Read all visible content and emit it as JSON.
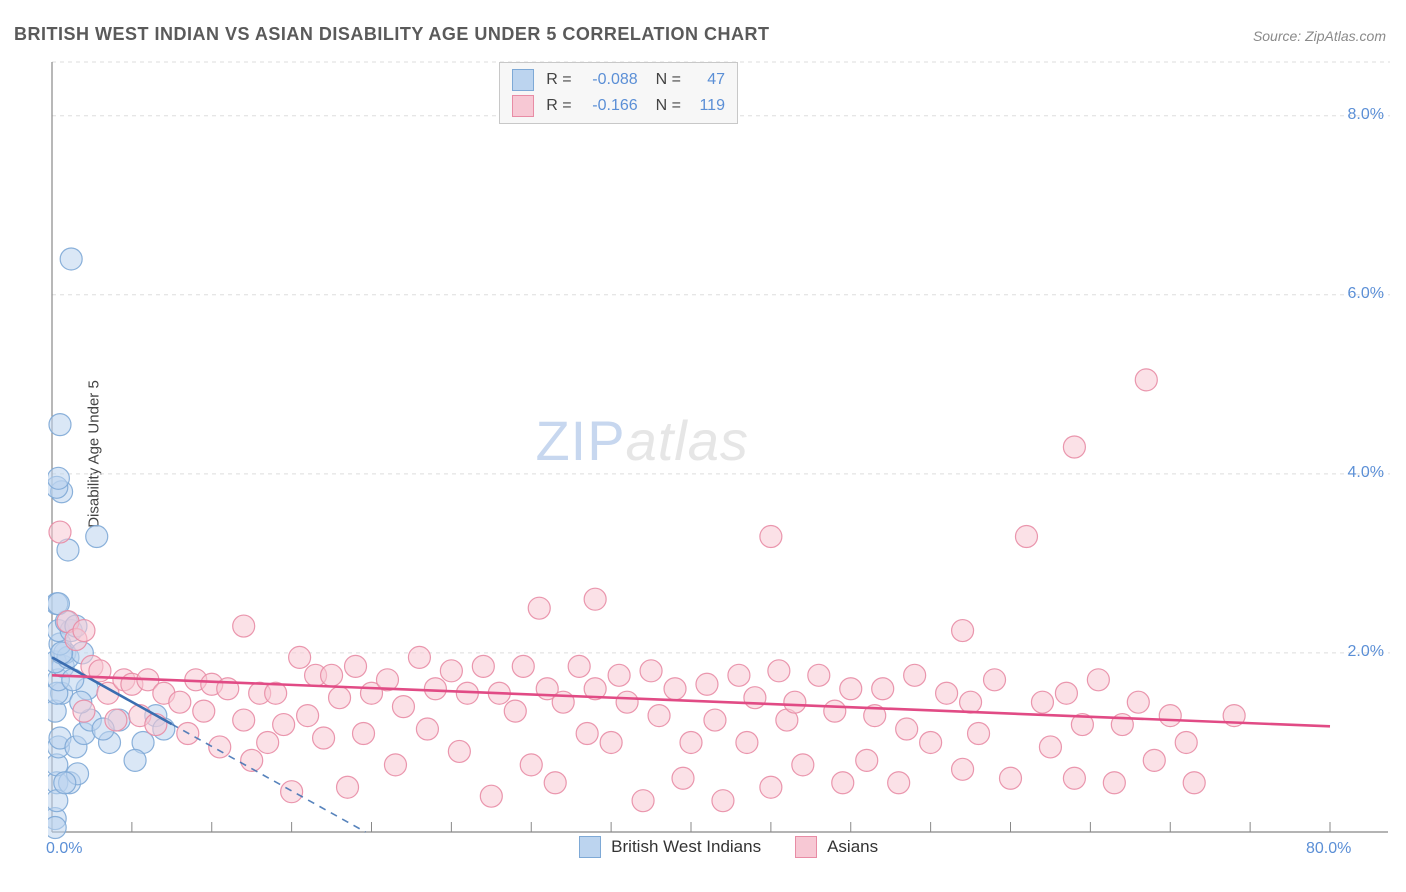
{
  "title": "BRITISH WEST INDIAN VS ASIAN DISABILITY AGE UNDER 5 CORRELATION CHART",
  "source": "Source: ZipAtlas.com",
  "y_axis_label": "Disability Age Under 5",
  "watermark": {
    "left": "ZIP",
    "right": "atlas"
  },
  "chart": {
    "type": "scatter",
    "background_color": "#ffffff",
    "grid_color": "#dedede",
    "axis_color": "#888888",
    "marker_radius": 11,
    "marker_opacity": 0.55,
    "xlim": [
      0,
      80
    ],
    "ylim": [
      0,
      8.6
    ],
    "x_ticks": [
      0,
      5,
      10,
      15,
      20,
      25,
      30,
      35,
      40,
      45,
      50,
      55,
      60,
      65,
      70,
      75,
      80
    ],
    "x_tick_labels": {
      "0": "0.0%",
      "80": "80.0%"
    },
    "y_ticks": [
      2,
      4,
      6,
      8
    ],
    "y_tick_labels": {
      "2": "2.0%",
      "4": "4.0%",
      "6": "6.0%",
      "8": "8.0%"
    },
    "series": [
      {
        "name": "British West Indians",
        "color_fill": "#bcd4ef",
        "color_stroke": "#7ea9d6",
        "R": "-0.088",
        "N": "47",
        "trend": {
          "y_at_xmin": 1.95,
          "y_at_xmax": -6.0,
          "dash_after_x": 7.5,
          "color": "#3a6db0"
        },
        "points": [
          [
            0.2,
            0.15
          ],
          [
            0.3,
            0.55
          ],
          [
            0.3,
            0.75
          ],
          [
            0.4,
            0.95
          ],
          [
            0.5,
            1.05
          ],
          [
            0.2,
            1.35
          ],
          [
            0.6,
            1.55
          ],
          [
            0.3,
            1.55
          ],
          [
            0.4,
            1.7
          ],
          [
            0.7,
            1.85
          ],
          [
            0.2,
            1.9
          ],
          [
            0.8,
            2.0
          ],
          [
            1.0,
            1.95
          ],
          [
            0.5,
            2.1
          ],
          [
            0.4,
            2.25
          ],
          [
            1.2,
            2.25
          ],
          [
            0.3,
            0.35
          ],
          [
            1.1,
            0.55
          ],
          [
            1.6,
            0.65
          ],
          [
            1.5,
            0.95
          ],
          [
            2.0,
            1.1
          ],
          [
            2.2,
            1.6
          ],
          [
            2.4,
            1.25
          ],
          [
            1.8,
            1.45
          ],
          [
            0.9,
            2.35
          ],
          [
            1.5,
            2.3
          ],
          [
            0.3,
            2.55
          ],
          [
            0.4,
            2.55
          ],
          [
            1.0,
            3.15
          ],
          [
            2.8,
            3.3
          ],
          [
            0.6,
            3.8
          ],
          [
            0.3,
            3.85
          ],
          [
            0.4,
            3.95
          ],
          [
            0.5,
            4.55
          ],
          [
            1.2,
            6.4
          ],
          [
            3.6,
            1.0
          ],
          [
            4.2,
            1.25
          ],
          [
            5.7,
            1.0
          ],
          [
            6.5,
            1.3
          ],
          [
            7.0,
            1.15
          ],
          [
            0.2,
            0.05
          ],
          [
            0.8,
            0.55
          ],
          [
            1.3,
            1.7
          ],
          [
            1.9,
            2.0
          ],
          [
            0.6,
            2.0
          ],
          [
            3.2,
            1.15
          ],
          [
            5.2,
            0.8
          ]
        ]
      },
      {
        "name": "Asians",
        "color_fill": "#f7c8d4",
        "color_stroke": "#e88ca5",
        "R": "-0.166",
        "N": "119",
        "trend": {
          "y_at_xmin": 1.75,
          "y_at_xmax": 1.18,
          "dash_after_x": 999,
          "color": "#e14b85"
        },
        "points": [
          [
            0.5,
            3.35
          ],
          [
            1.0,
            2.35
          ],
          [
            1.5,
            2.15
          ],
          [
            2.0,
            2.25
          ],
          [
            2.5,
            1.85
          ],
          [
            2.0,
            1.35
          ],
          [
            3.0,
            1.8
          ],
          [
            3.5,
            1.55
          ],
          [
            4.0,
            1.25
          ],
          [
            4.5,
            1.7
          ],
          [
            5.0,
            1.65
          ],
          [
            5.5,
            1.3
          ],
          [
            6.0,
            1.7
          ],
          [
            6.5,
            1.2
          ],
          [
            7.0,
            1.55
          ],
          [
            8.0,
            1.45
          ],
          [
            8.5,
            1.1
          ],
          [
            9.0,
            1.7
          ],
          [
            9.5,
            1.35
          ],
          [
            10.0,
            1.65
          ],
          [
            10.5,
            0.95
          ],
          [
            11.0,
            1.6
          ],
          [
            12.0,
            1.25
          ],
          [
            12.0,
            2.3
          ],
          [
            12.5,
            0.8
          ],
          [
            13.0,
            1.55
          ],
          [
            13.5,
            1.0
          ],
          [
            14.0,
            1.55
          ],
          [
            14.5,
            1.2
          ],
          [
            15.0,
            0.45
          ],
          [
            15.5,
            1.95
          ],
          [
            16.0,
            1.3
          ],
          [
            16.5,
            1.75
          ],
          [
            17.0,
            1.05
          ],
          [
            17.5,
            1.75
          ],
          [
            18.0,
            1.5
          ],
          [
            18.5,
            0.5
          ],
          [
            19.0,
            1.85
          ],
          [
            19.5,
            1.1
          ],
          [
            20.0,
            1.55
          ],
          [
            21.0,
            1.7
          ],
          [
            21.5,
            0.75
          ],
          [
            22.0,
            1.4
          ],
          [
            23.0,
            1.95
          ],
          [
            23.5,
            1.15
          ],
          [
            24.0,
            1.6
          ],
          [
            25.0,
            1.8
          ],
          [
            25.5,
            0.9
          ],
          [
            26.0,
            1.55
          ],
          [
            27.0,
            1.85
          ],
          [
            27.5,
            0.4
          ],
          [
            28.0,
            1.55
          ],
          [
            29.0,
            1.35
          ],
          [
            29.5,
            1.85
          ],
          [
            30.0,
            0.75
          ],
          [
            30.5,
            2.5
          ],
          [
            31.0,
            1.6
          ],
          [
            31.5,
            0.55
          ],
          [
            32.0,
            1.45
          ],
          [
            33.0,
            1.85
          ],
          [
            33.5,
            1.1
          ],
          [
            34.0,
            1.6
          ],
          [
            34.0,
            2.6
          ],
          [
            35.0,
            1.0
          ],
          [
            35.5,
            1.75
          ],
          [
            36.0,
            1.45
          ],
          [
            37.0,
            0.35
          ],
          [
            37.5,
            1.8
          ],
          [
            38.0,
            1.3
          ],
          [
            39.0,
            1.6
          ],
          [
            39.5,
            0.6
          ],
          [
            40.0,
            1.0
          ],
          [
            41.0,
            1.65
          ],
          [
            41.5,
            1.25
          ],
          [
            42.0,
            0.35
          ],
          [
            43.0,
            1.75
          ],
          [
            43.5,
            1.0
          ],
          [
            44.0,
            1.5
          ],
          [
            45.0,
            0.5
          ],
          [
            45.5,
            1.8
          ],
          [
            45.0,
            3.3
          ],
          [
            46.0,
            1.25
          ],
          [
            46.5,
            1.45
          ],
          [
            47.0,
            0.75
          ],
          [
            48.0,
            1.75
          ],
          [
            49.0,
            1.35
          ],
          [
            49.5,
            0.55
          ],
          [
            50.0,
            1.6
          ],
          [
            51.0,
            0.8
          ],
          [
            51.5,
            1.3
          ],
          [
            52.0,
            1.6
          ],
          [
            53.0,
            0.55
          ],
          [
            53.5,
            1.15
          ],
          [
            54.0,
            1.75
          ],
          [
            55.0,
            1.0
          ],
          [
            56.0,
            1.55
          ],
          [
            57.0,
            0.7
          ],
          [
            57.5,
            1.45
          ],
          [
            57.0,
            2.25
          ],
          [
            58.0,
            1.1
          ],
          [
            59.0,
            1.7
          ],
          [
            60.0,
            0.6
          ],
          [
            61.0,
            3.3
          ],
          [
            62.0,
            1.45
          ],
          [
            62.5,
            0.95
          ],
          [
            63.5,
            1.55
          ],
          [
            64.0,
            0.6
          ],
          [
            64.0,
            4.3
          ],
          [
            64.5,
            1.2
          ],
          [
            65.5,
            1.7
          ],
          [
            66.5,
            0.55
          ],
          [
            67.0,
            1.2
          ],
          [
            68.0,
            1.45
          ],
          [
            68.5,
            5.05
          ],
          [
            69.0,
            0.8
          ],
          [
            70.0,
            1.3
          ],
          [
            71.0,
            1.0
          ],
          [
            71.5,
            0.55
          ],
          [
            74.0,
            1.3
          ]
        ]
      }
    ]
  },
  "legend_bottom": [
    {
      "label": "British West Indians",
      "fill": "#bcd4ef",
      "stroke": "#7ea9d6"
    },
    {
      "label": "Asians",
      "fill": "#f7c8d4",
      "stroke": "#e88ca5"
    }
  ]
}
